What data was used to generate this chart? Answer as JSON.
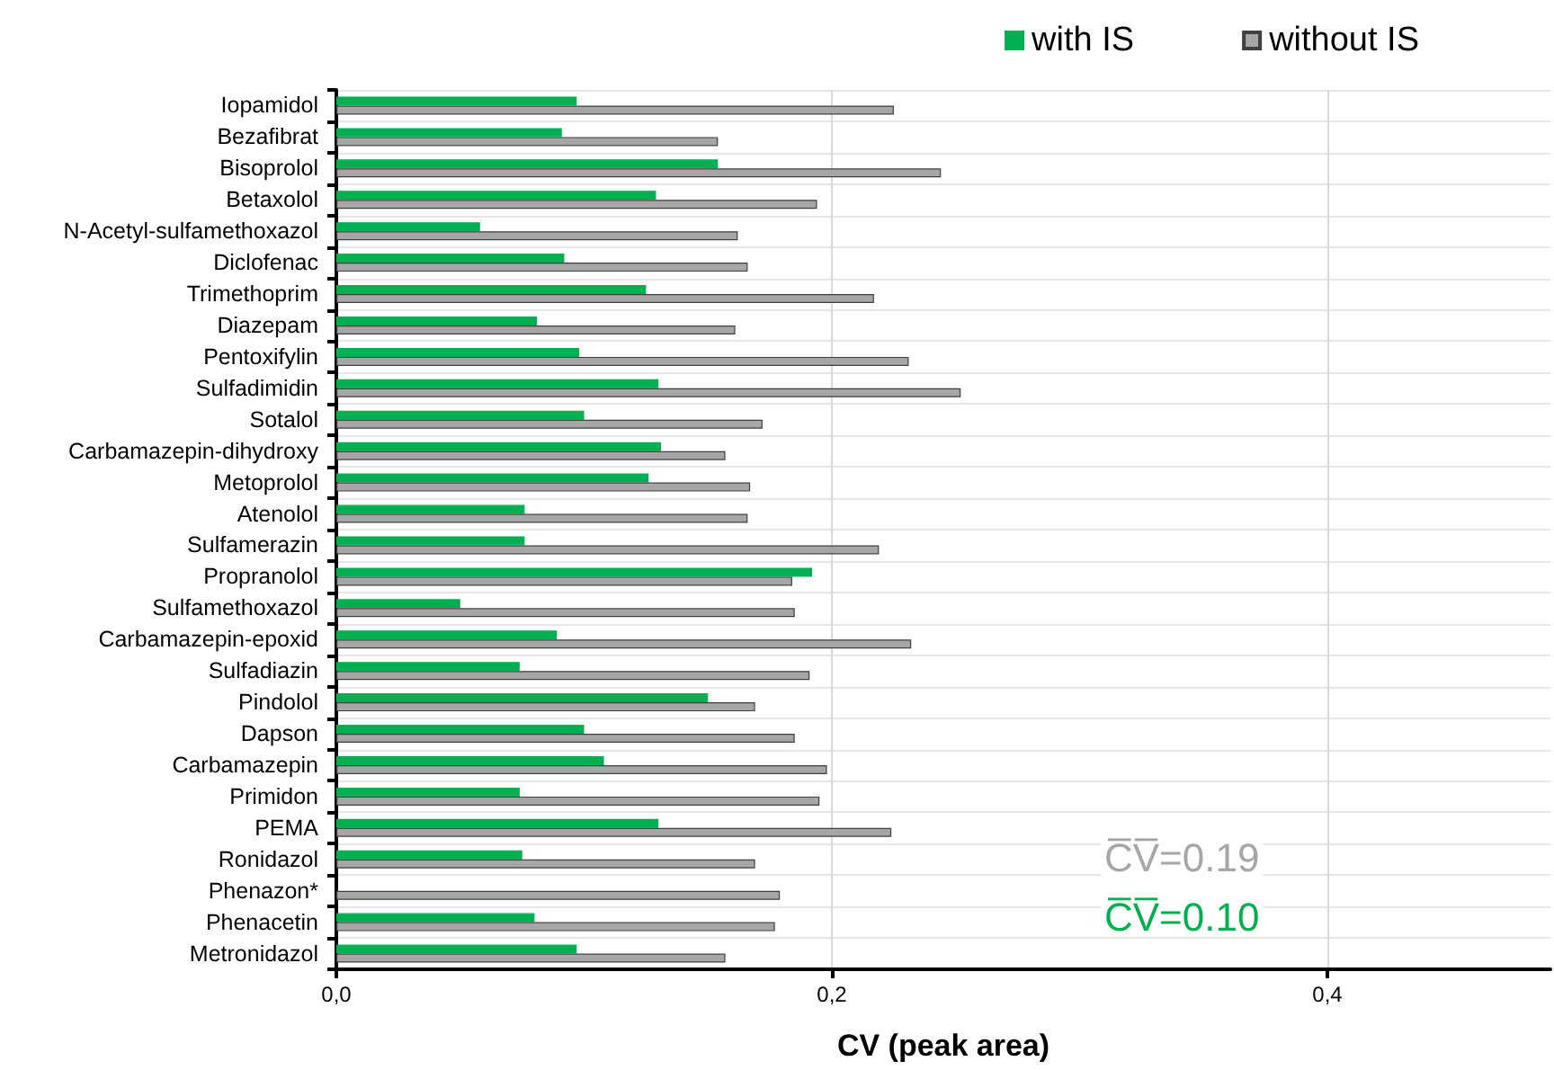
{
  "chart_data": {
    "type": "bar",
    "orientation": "horizontal",
    "xlabel": "CV (peak area)",
    "categories": [
      "Iopamidol",
      "Bezafibrat",
      "Bisoprolol",
      "Betaxolol",
      "N-Acetyl-sulfamethoxazol",
      "Diclofenac",
      "Trimethoprim",
      "Diazepam",
      "Pentoxifylin",
      "Sulfadimidin",
      "Sotalol",
      "Carbamazepin-dihydroxy",
      "Metoprolol",
      "Atenolol",
      "Sulfamerazin",
      "Propranolol",
      "Sulfamethoxazol",
      "Carbamazepin-epoxid",
      "Sulfadiazin",
      "Pindolol",
      "Dapson",
      "Carbamazepin",
      "Primidon",
      "PEMA",
      "Ronidazol",
      "Phenazon*",
      "Phenacetin",
      "Metronidazol"
    ],
    "series": [
      {
        "name": "with IS",
        "color": "#00b050",
        "values": [
          0.097,
          0.091,
          0.154,
          0.129,
          0.058,
          0.092,
          0.125,
          0.081,
          0.098,
          0.13,
          0.1,
          0.131,
          0.126,
          0.076,
          0.076,
          0.192,
          0.05,
          0.089,
          0.074,
          0.15,
          0.1,
          0.108,
          0.074,
          0.13,
          0.075,
          null,
          0.08,
          0.097
        ]
      },
      {
        "name": "without IS",
        "color": "#a6a6a6",
        "values": [
          0.225,
          0.154,
          0.244,
          0.194,
          0.162,
          0.166,
          0.217,
          0.161,
          0.231,
          0.252,
          0.172,
          0.157,
          0.167,
          0.166,
          0.219,
          0.184,
          0.185,
          0.232,
          0.191,
          0.169,
          0.185,
          0.198,
          0.195,
          0.224,
          0.169,
          0.179,
          0.177,
          0.157
        ]
      }
    ],
    "xlim": [
      0,
      0.49
    ],
    "xticks": [
      {
        "value": 0,
        "label": "0,0"
      },
      {
        "value": 0.2,
        "label": "0,2"
      },
      {
        "value": 0.4,
        "label": "0,4"
      }
    ],
    "annotations": [
      "C̅V̅=0.19",
      "C̅V̅=0.10"
    ],
    "grid": true,
    "legend": "top right"
  }
}
